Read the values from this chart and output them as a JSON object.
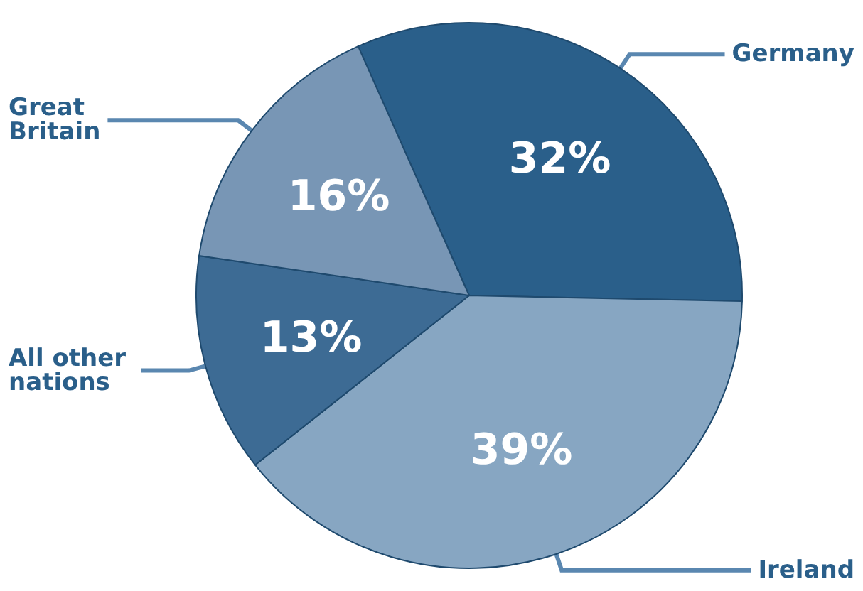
{
  "chart_data": {
    "type": "pie",
    "categories": [
      "Germany",
      "Ireland",
      "All other nations",
      "Great Britain"
    ],
    "values": [
      32,
      39,
      13,
      16
    ],
    "colors": [
      "#2a5f8a",
      "#87a6c2",
      "#3d6b94",
      "#7896b5"
    ],
    "value_labels": [
      "32%",
      "39%",
      "13%",
      "16%"
    ]
  }
}
